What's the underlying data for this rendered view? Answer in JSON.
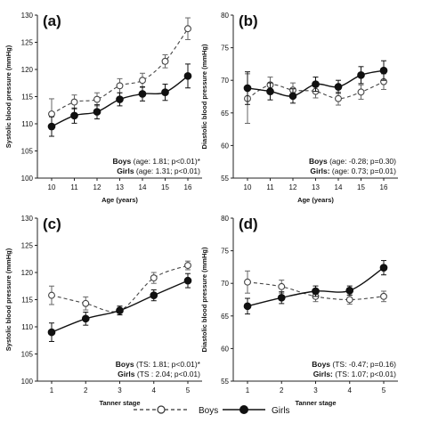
{
  "legend": {
    "boys": "Boys",
    "girls": "Girls"
  },
  "chart_data": [
    {
      "type": "line",
      "panel_label": "(a)",
      "xlabel": "Age (years)",
      "ylabel": "Systolic blood pressure (mmHg)",
      "x": [
        10,
        11,
        12,
        13,
        14,
        15,
        16
      ],
      "ylim": [
        100,
        130
      ],
      "yticks": [
        100,
        105,
        110,
        115,
        120,
        125,
        130
      ],
      "series": [
        {
          "name": "Boys",
          "values": [
            111.8,
            114.0,
            114.5,
            117.0,
            118.0,
            121.5,
            127.5
          ],
          "err": [
            2.8,
            1.3,
            1.2,
            1.3,
            1.3,
            1.2,
            2.0
          ]
        },
        {
          "name": "Girls",
          "values": [
            109.5,
            111.5,
            112.2,
            114.5,
            115.5,
            115.8,
            118.8
          ],
          "err": [
            1.8,
            1.4,
            1.3,
            1.2,
            1.3,
            1.5,
            2.2
          ]
        }
      ],
      "stats": [
        {
          "label": "Boys",
          "text": " (age: 1.81; p<0.01)*"
        },
        {
          "label": "Girls",
          "text": " (age: 1.31; p<0.01)"
        }
      ]
    },
    {
      "type": "line",
      "panel_label": "(b)",
      "xlabel": "Age (years)",
      "ylabel": "Diastolic blood pressure (mmHg)",
      "x": [
        10,
        11,
        12,
        13,
        14,
        15,
        16
      ],
      "ylim": [
        55,
        80
      ],
      "yticks": [
        55,
        60,
        65,
        70,
        75,
        80
      ],
      "series": [
        {
          "name": "Boys",
          "values": [
            67.2,
            69.3,
            68.5,
            68.3,
            67.2,
            68.2,
            69.8
          ],
          "err": [
            3.8,
            1.2,
            1.1,
            1.0,
            1.0,
            1.1,
            1.2
          ]
        },
        {
          "name": "Girls",
          "values": [
            68.8,
            68.3,
            67.6,
            69.4,
            69.0,
            70.8,
            71.5
          ],
          "err": [
            2.5,
            1.3,
            1.1,
            1.1,
            1.0,
            1.3,
            1.5
          ]
        }
      ],
      "stats": [
        {
          "label": "Boys",
          "text": " (age: -0.28; p=0.30)"
        },
        {
          "label": "Girls:",
          "text": " (age: 0.73; p=0.01)"
        }
      ]
    },
    {
      "type": "line",
      "panel_label": "(c)",
      "xlabel": "Tanner stage",
      "ylabel": "Systolic blood pressure (mmHg)",
      "x": [
        1,
        2,
        3,
        4,
        5
      ],
      "ylim": [
        100,
        130
      ],
      "yticks": [
        100,
        105,
        110,
        115,
        120,
        125,
        130
      ],
      "series": [
        {
          "name": "Boys",
          "values": [
            115.8,
            114.3,
            113.0,
            119.0,
            121.3
          ],
          "err": [
            1.7,
            1.2,
            0.8,
            1.0,
            0.8
          ]
        },
        {
          "name": "Girls",
          "values": [
            109.0,
            111.5,
            113.0,
            115.8,
            118.5
          ],
          "err": [
            1.7,
            1.2,
            0.8,
            1.0,
            1.3
          ]
        }
      ],
      "stats": [
        {
          "label": "Boys",
          "text": " (TS: 1.81; p<0.01)*"
        },
        {
          "label": "Girls",
          "text": " (TS : 2.04; p<0.01)"
        }
      ]
    },
    {
      "type": "line",
      "panel_label": "(d)",
      "xlabel": "Tanner stage",
      "ylabel": "Diastolic blood pressure (mmHg)",
      "x": [
        1,
        2,
        3,
        4,
        5
      ],
      "ylim": [
        55,
        80
      ],
      "yticks": [
        55,
        60,
        65,
        70,
        75,
        80
      ],
      "series": [
        {
          "name": "Boys",
          "values": [
            70.2,
            69.5,
            68.0,
            67.5,
            68.0
          ],
          "err": [
            1.7,
            1.0,
            0.8,
            0.7,
            0.8
          ]
        },
        {
          "name": "Girls",
          "values": [
            66.5,
            67.8,
            68.8,
            68.9,
            72.4
          ],
          "err": [
            1.2,
            0.9,
            0.8,
            0.7,
            1.1
          ]
        }
      ],
      "stats": [
        {
          "label": "Boys",
          "text": " (TS: -0.47; p=0.16)"
        },
        {
          "label": "Girls:",
          "text": " (TS: 1.07; p<0.01)"
        }
      ]
    }
  ]
}
